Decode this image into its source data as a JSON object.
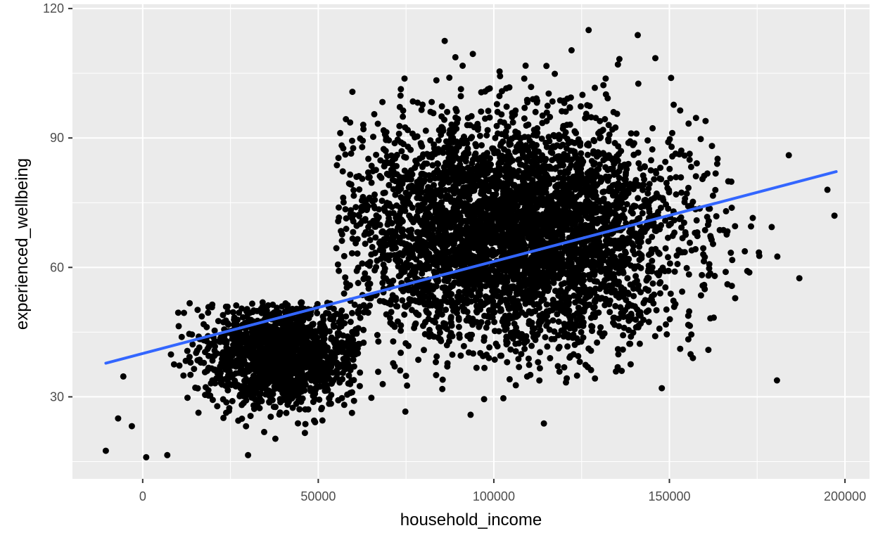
{
  "chart_data": {
    "type": "scatter",
    "title": "",
    "xlabel": "household_income",
    "ylabel": "experienced_wellbeing",
    "xlim": [
      -20000,
      207000
    ],
    "ylim": [
      11,
      121
    ],
    "x_ticks": [
      0,
      50000,
      100000,
      150000,
      200000
    ],
    "x_tick_labels": [
      "0",
      "50000",
      "100000",
      "150000",
      "200000"
    ],
    "y_ticks": [
      30,
      60,
      90,
      120
    ],
    "y_tick_labels": [
      "30",
      "60",
      "90",
      "120"
    ],
    "grid": true,
    "legend": "none",
    "colors": {
      "panel_background": "#ebebeb",
      "grid": "#ffffff",
      "points": "#000000",
      "trend_line": "#3366ff"
    },
    "clusters": [
      {
        "name": "low-income cluster",
        "x_center": 40000,
        "x_sd": 11000,
        "y_center": 40,
        "y_sd": 6,
        "x_range": [
          -12000,
          62000
        ],
        "y_range": [
          16,
          52
        ],
        "count": 1600
      },
      {
        "name": "main cluster",
        "x_center": 105000,
        "x_sd": 24000,
        "y_center": 68,
        "y_sd": 13,
        "x_range": [
          55000,
          185000
        ],
        "y_range": [
          16,
          116
        ],
        "count": 4600
      }
    ],
    "outliers": [
      {
        "x": -10500,
        "y": 17.5
      },
      {
        "x": -7000,
        "y": 25
      },
      {
        "x": 1000,
        "y": 16
      },
      {
        "x": 7000,
        "y": 16.5
      },
      {
        "x": 30000,
        "y": 16.5
      },
      {
        "x": 86000,
        "y": 112.5
      },
      {
        "x": 127000,
        "y": 115
      },
      {
        "x": 146000,
        "y": 108.5
      },
      {
        "x": 184000,
        "y": 86
      },
      {
        "x": 187000,
        "y": 57.5
      },
      {
        "x": 197000,
        "y": 72
      },
      {
        "x": 195000,
        "y": 78
      }
    ],
    "trend_line": {
      "x": [
        -10500,
        197500
      ],
      "y": [
        37.8,
        82.2
      ]
    }
  }
}
